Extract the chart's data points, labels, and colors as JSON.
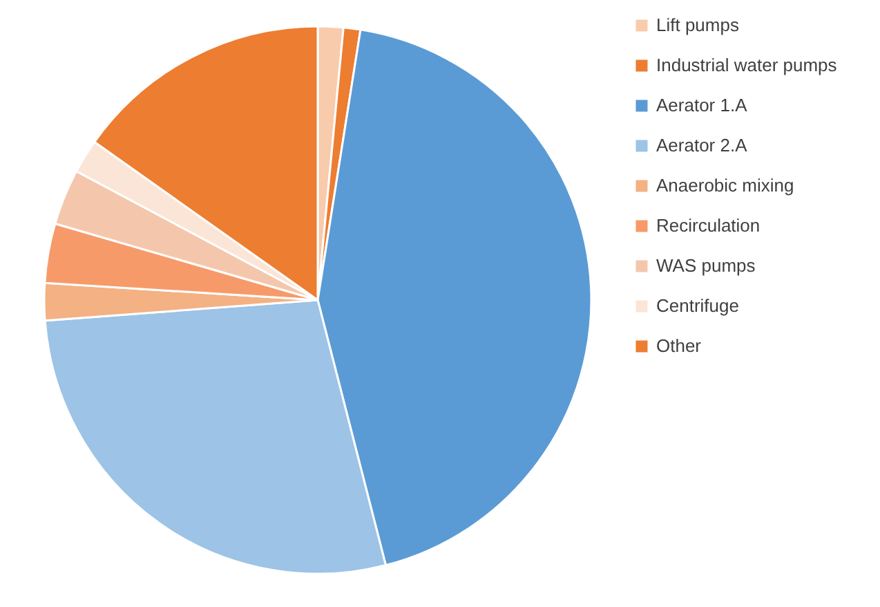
{
  "chart_data": {
    "type": "pie",
    "categories": [
      "Lift pumps",
      "Industrial water pumps",
      "Aerator 1.A",
      "Aerator 2.A",
      "Anaerobic mixing",
      "Recirculation",
      "WAS pumps",
      "Centrifuge",
      "Other"
    ],
    "values": [
      1.5,
      1,
      43.5,
      27.8,
      2.2,
      3.5,
      3.3,
      2,
      15.2
    ],
    "colors": [
      "#f8cbad",
      "#ed7d31",
      "#5b9bd5",
      "#9dc3e6",
      "#f4b183",
      "#f79a6a",
      "#f4c7ac",
      "#fbe5d6",
      "#ed7d31"
    ],
    "legend": "right"
  }
}
